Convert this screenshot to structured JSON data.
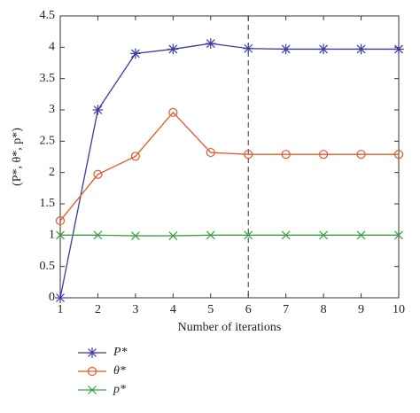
{
  "chart_data": {
    "type": "line",
    "x_label": "Number of iterations",
    "y_label": "(P*, θ*, p*)",
    "x": [
      1,
      2,
      3,
      4,
      5,
      6,
      7,
      8,
      9,
      10
    ],
    "series": [
      {
        "name": "P*",
        "color": "#3b3ba6",
        "marker": "asterisk",
        "values": [
          0,
          3,
          3.9,
          3.97,
          4.06,
          3.98,
          3.97,
          3.97,
          3.97,
          3.97
        ]
      },
      {
        "name": "θ*",
        "color": "#e0592b",
        "marker": "circle",
        "values": [
          1.23,
          1.97,
          2.26,
          2.96,
          2.32,
          2.29,
          2.29,
          2.29,
          2.29,
          2.29
        ]
      },
      {
        "name": "p*",
        "color": "#3aa043",
        "marker": "x",
        "values": [
          1,
          1,
          0.99,
          0.99,
          1,
          1,
          1,
          1,
          1,
          1
        ]
      }
    ],
    "vline_x": 6,
    "xlim": [
      1,
      10
    ],
    "xticks": [
      1,
      2,
      3,
      4,
      5,
      6,
      7,
      8,
      9,
      10
    ],
    "ylim": [
      0,
      4.5
    ],
    "yticks": [
      0,
      0.5,
      1,
      1.5,
      2,
      2.5,
      3,
      3.5,
      4,
      4.5
    ],
    "legend": "bottom-left"
  }
}
